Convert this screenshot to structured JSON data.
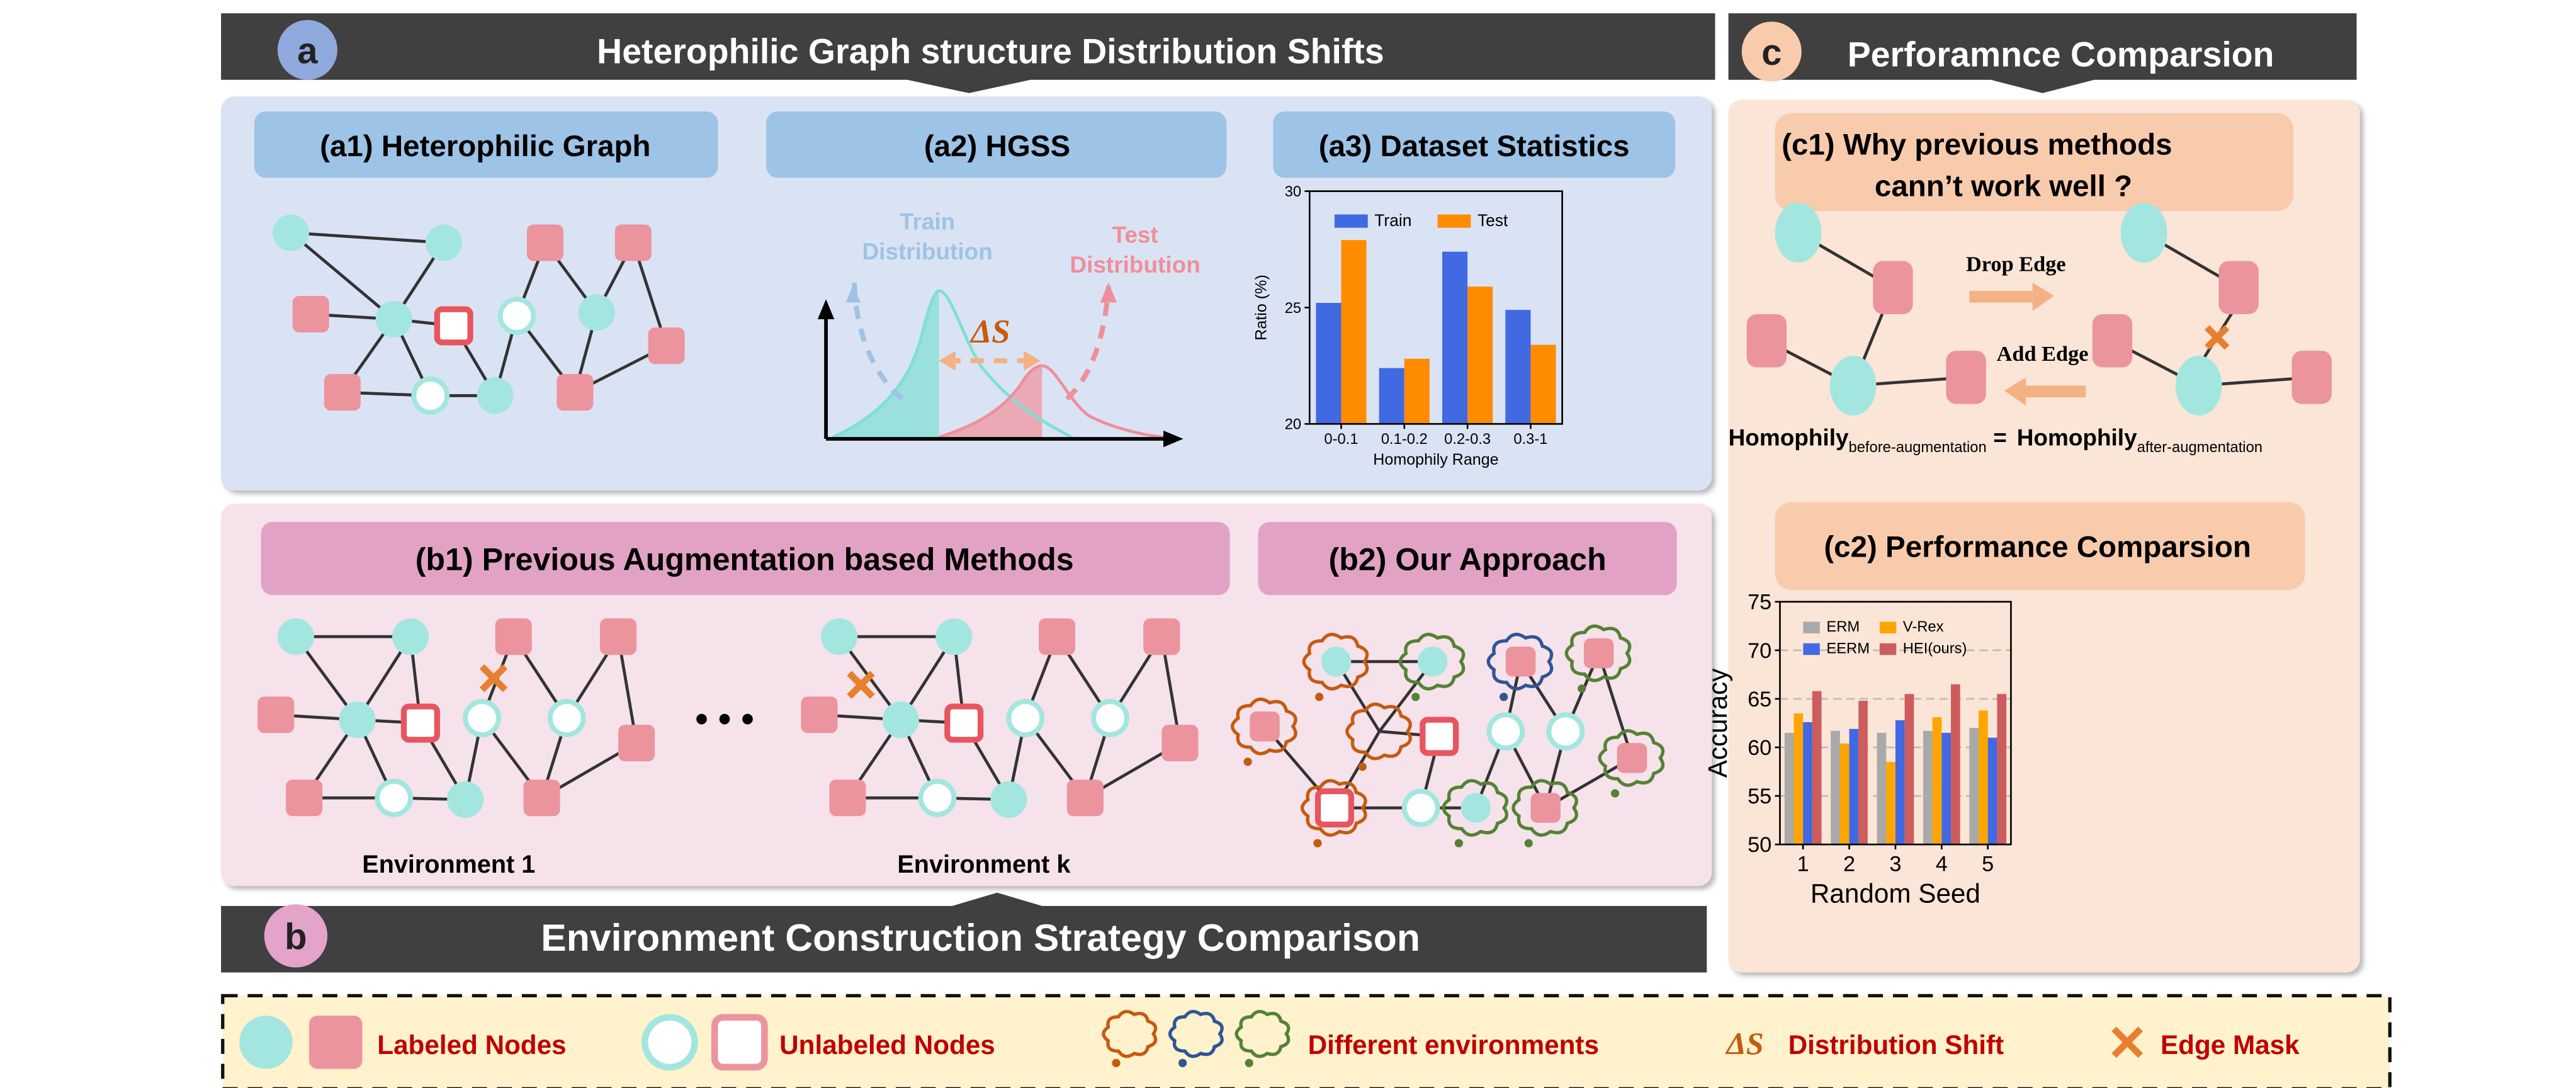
{
  "panel_a": {
    "badge": "a",
    "title": "Heterophilic Graph structure Distribution Shifts",
    "a1_label": "(a1) Heterophilic Graph",
    "a2_label": "(a2) HGSS",
    "a3_label": "(a3) Dataset Statistics",
    "a2_train_line1": "Train",
    "a2_train_line2": "Distribution",
    "a2_test_line1": "Test",
    "a2_test_line2": "Distribution",
    "a2_shift": "ΔS"
  },
  "panel_b": {
    "badge": "b",
    "title": "Environment Construction Strategy Comparison",
    "b1_label": "(b1)  Previous Augmentation based Methods",
    "b2_label": "(b2)  Our Approach",
    "env1": "Environment 1",
    "envk": "Environment k",
    "ellipsis": "• • •"
  },
  "panel_c": {
    "badge": "c",
    "title": "Perforamnce Comparsion",
    "c1_line1": "(c1)  Why previous methods",
    "c1_line2": "cann’t work well ?",
    "drop_edge": "Drop Edge",
    "add_edge": "Add Edge",
    "homophily": "Homophily",
    "before_sub": "before-augmentation",
    "equals": "=",
    "after_sub": "after-augmentation",
    "c2_label": "(c2)  Performance Comparsion"
  },
  "legend": {
    "labeled": "Labeled Nodes",
    "unlabeled": "Unlabeled Nodes",
    "environments": "Different environments",
    "shift_symbol": "ΔS",
    "shift": "Distribution Shift",
    "edge_mask": "Edge Mask"
  },
  "colors": {
    "teal": "#a3e6e0",
    "pink": "#ec949e",
    "header": "#404040",
    "legend_text": "#c00000",
    "orange_mark": "#e87f2e"
  },
  "chart_data": [
    {
      "type": "bar",
      "title": "",
      "categories": [
        "0-0.1",
        "0.1-0.2",
        "0.2-0.3",
        "0.3-1"
      ],
      "series": [
        {
          "name": "Train",
          "color": "#4169e1",
          "values": [
            25.2,
            22.4,
            27.4,
            24.9
          ]
        },
        {
          "name": "Test",
          "color": "#ff8c00",
          "values": [
            27.9,
            22.8,
            25.9,
            23.4
          ]
        }
      ],
      "xlabel": "Homophily Range",
      "ylabel": "Ratio (%)",
      "ylim": [
        20,
        30
      ],
      "yticks": [
        "20",
        "25",
        "30"
      ],
      "legend": "top"
    },
    {
      "type": "bar",
      "title": "",
      "categories": [
        "1",
        "2",
        "3",
        "4",
        "5"
      ],
      "series": [
        {
          "name": "ERM",
          "color": "#a9a9a9",
          "values": [
            61.5,
            61.7,
            61.5,
            61.7,
            62.0
          ]
        },
        {
          "name": "V-Rex",
          "color": "#ffa500",
          "values": [
            63.5,
            60.4,
            58.5,
            63.1,
            63.8
          ]
        },
        {
          "name": "EERM",
          "color": "#4169e1",
          "values": [
            62.6,
            61.9,
            62.8,
            61.5,
            61.0
          ]
        },
        {
          "name": "HEI(ours)",
          "color": "#cd5c5c",
          "values": [
            65.8,
            64.8,
            65.5,
            66.5,
            65.5
          ]
        }
      ],
      "xlabel": "Random Seed",
      "ylabel": "Accuracy",
      "ylim": [
        50,
        75
      ],
      "yticks": [
        "50",
        "55",
        "60",
        "65",
        "70",
        "75"
      ],
      "grid": true,
      "legend": "top"
    }
  ]
}
